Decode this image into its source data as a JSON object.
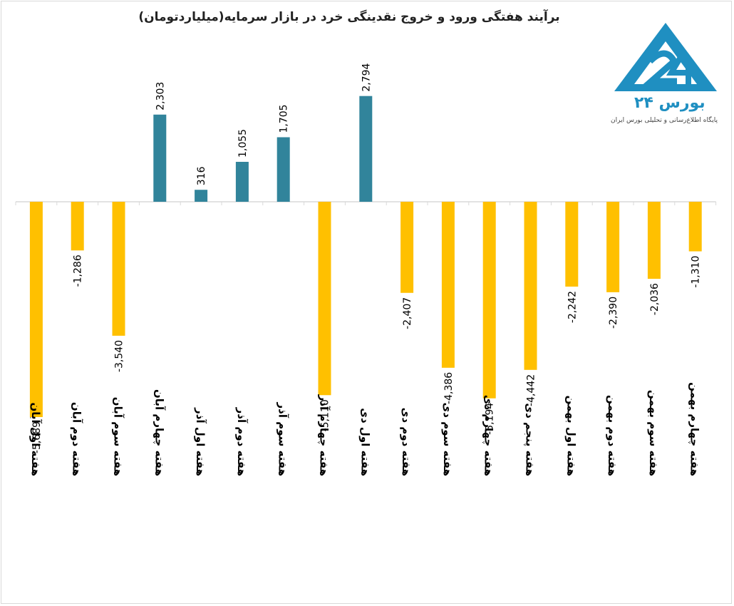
{
  "chart_data": {
    "type": "bar",
    "title": "برآیند هفتگی ورود و خروج نقدینگی خرد در بازار سرمایه(میلیاردتومان)",
    "categories": [
      "هفته اول آبان",
      "هفته دوم آبان",
      "هفته سوم آبان",
      "هفته چهارم آبان",
      "هفته اول آذر",
      "هفته دوم آذر",
      "هفته سوم آذر",
      "هفته چهارم آذر",
      "هفته اول دی",
      "هفته دوم دی",
      "هفته سوم دی",
      "هفته چهارم دی",
      "هفته پنجم دی",
      "هفته اول بهمن",
      "هفته دوم بهمن",
      "هفته سوم بهمن",
      "هفته چهارم بهمن"
    ],
    "values": [
      -5689,
      -1286,
      -3540,
      2303,
      316,
      1055,
      1705,
      -5110,
      2794,
      -2407,
      -4386,
      -5194,
      -4442,
      -2242,
      -2390,
      -2036,
      -1310
    ],
    "labels": [
      "-5,689",
      "-1,286",
      "-3,540",
      "2,303",
      "316",
      "1,055",
      "1,705",
      "-5,110",
      "2,794",
      "-2,407",
      "-4,386",
      "-5,194",
      "-4,442",
      "-2,242",
      "-2,390",
      "-2,036",
      "-1,310"
    ],
    "ylim": [
      -6000,
      3000
    ],
    "grid": false,
    "colors": {
      "positive": "#31849b",
      "negative": "#ffc000",
      "axis": "#d9d9d9",
      "text": "#000000"
    }
  },
  "logo": {
    "name": "بورس ۲۴",
    "tagline": "پایگاه اطلاع‌رسانی و تحلیلی بورس ایران",
    "color": "#1f8fc1"
  }
}
